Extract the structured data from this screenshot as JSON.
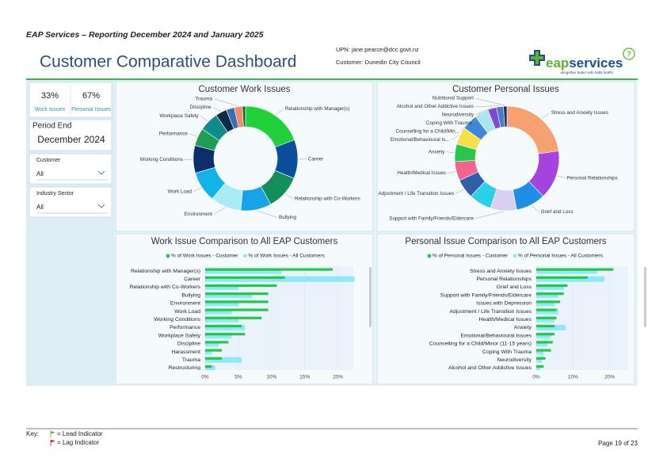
{
  "document": {
    "header": "EAP Services – Reporting December 2024 and January 2025",
    "footer": {
      "key": "Key:",
      "lead": "= Lead Indicator",
      "lag": "= Lag Indicator",
      "page": "Page 19 of 23"
    }
  },
  "dashboard": {
    "title": "Customer Comparative Dashboard",
    "upn": "UPN: jane.pearce@dcc.govt.nz",
    "customer": "Customer: Dunedin City Council",
    "logo": {
      "prefix": "eap",
      "suffix": "services",
      "tagline": "altogether better with habit health"
    },
    "help": "?",
    "kpis": [
      {
        "value": "33%",
        "label": "Work Issues"
      },
      {
        "value": "67%",
        "label": "Personal Issues"
      }
    ],
    "period": {
      "label": "Period End",
      "value": "December 2024"
    },
    "filters": [
      {
        "label": "Customer",
        "value": "All"
      },
      {
        "label": "Industry Sector",
        "value": "All"
      }
    ]
  },
  "charts": [
    {
      "type": "donut",
      "title": "Customer Work Issues",
      "categories": [
        "Relationship with Manager(s)",
        "Career",
        "Relationship with Co-Workers",
        "Bullying",
        "Environment",
        "Work Load",
        "Working Conditions",
        "Performance",
        "Workplace Safety",
        "Discipline",
        "Harassment",
        "Trauma",
        "Restructuring"
      ],
      "labels": [
        "Relationship with Manager(s)",
        "Career",
        "Relationship with Co-Workers",
        "Bullying",
        "Environment",
        "Work Load",
        "Working Conditions",
        "Performance",
        "Workplace Safety",
        "Discipline",
        null,
        "Trauma",
        null
      ],
      "values": [
        19.2,
        12,
        10.8,
        9.5,
        9.5,
        9.5,
        8.5,
        5.5,
        6,
        3.5,
        2.5,
        2.5,
        1
      ],
      "colors": [
        "#22d03c",
        "#0b4f9c",
        "#148f5a",
        "#1aa2e6",
        "#a8ecf5",
        "#12b3e8",
        "#0d2e6b",
        "#1e9e4f",
        "#108a8a",
        "#0c2a4a",
        "#3b6fb0",
        "#f48a6a",
        "#0e6e3c"
      ]
    },
    {
      "type": "donut",
      "title": "Customer Personal Issues",
      "categories": [
        "Stress and Anxiety Issues",
        "Personal Relationships",
        "Grief and Loss",
        "Support with Family/Friends/Eldercare",
        "Issues with Depression",
        "Adjustment / Life Transition Issues",
        "Health/Medical Issues",
        "Anxiety",
        "Emotional/Behavioural Issues",
        "Counselling for a Child/Minor (11-15 years)",
        "Coping With Trauma",
        "Neurodiversity",
        "Alcohol and Other Addictive Issues",
        "Nutritional Support"
      ],
      "labels": [
        "Stress and Anxiety Issues",
        "Personal Relationships",
        "Grief and Loss",
        "Support with Family/Friends/Eldercare",
        null,
        "Adjustment / Life Transition Issues",
        "Health/Medical Issues",
        "Anxiety",
        "Emotional/Behavioural Is...",
        "Counselling for a Child/Min...",
        "Coping With Trauma",
        "Neurodiversity",
        "Alcohol and Other Addictive Issues",
        "Nutritional Support"
      ],
      "values": [
        21,
        14,
        8.5,
        7.5,
        6.5,
        5.5,
        5.5,
        5,
        5,
        4.5,
        4,
        2.5,
        2,
        1
      ],
      "colors": [
        "#f7a072",
        "#a443dd",
        "#1d8fe6",
        "#d9cff2",
        "#2ad0e8",
        "#2f5fa8",
        "#f0648e",
        "#26c74a",
        "#f5e04a",
        "#3f86d6",
        "#a9e6f2",
        "#7a4bd0",
        "#4d7ac4",
        "#1a2f5a"
      ]
    },
    {
      "type": "hbar",
      "title": "Work Issue Comparison to All EAP Customers",
      "categories": [
        "Relationship with Manager(s)",
        "Career",
        "Relationship with Co-Workers",
        "Bullying",
        "Environment",
        "Work Load",
        "Working Conditions",
        "Performance",
        "Workplace Safety",
        "Discipline",
        "Harassment",
        "Trauma",
        "Restructuring"
      ],
      "series": [
        {
          "name": "% of Work Issues - Customer",
          "color": "#22c84a",
          "values": [
            19.2,
            12,
            10.8,
            9.5,
            9.5,
            9.5,
            8.5,
            5.5,
            6,
            3.5,
            2.5,
            2.5,
            1
          ]
        },
        {
          "name": "% of Work Issues - All Customers",
          "color": "#8ee8f5",
          "values": [
            11.5,
            22.5,
            5,
            7,
            5,
            4,
            5,
            6,
            4,
            2,
            1,
            5.5,
            1.5
          ]
        }
      ],
      "xlim": [
        0,
        22.3
      ],
      "xticks": [
        {
          "value": 0,
          "label": "0%"
        },
        {
          "value": 5,
          "label": "5%"
        },
        {
          "value": 10,
          "label": "10%"
        },
        {
          "value": 15,
          "label": "15%"
        },
        {
          "value": 20,
          "label": "20%"
        }
      ]
    },
    {
      "type": "hbar",
      "title": "Personal Issue Comparison to All EAP Customers",
      "categories": [
        "Stress and Anxiety Issues",
        "Personal Relationships",
        "Grief and Loss",
        "Support with Family/Friends/Eldercare",
        "Issues with Depression",
        "Adjustment / Life Transition Issues",
        "Health/Medical Issues",
        "Anxiety",
        "Emotional/Behavioural Issues",
        "Counselling for a Child/Minor (11-15 years)",
        "Coping With Trauma",
        "Neurodiversity",
        "Alcohol and Other Addictive Issues"
      ],
      "series": [
        {
          "name": "% of Personal Issues - Customer",
          "color": "#22c84a",
          "values": [
            21,
            14,
            8.5,
            7.5,
            6.5,
            5.5,
            5.5,
            5,
            5,
            4.5,
            4,
            2.5,
            2
          ]
        },
        {
          "name": "% of Personal Issues - All Customers",
          "color": "#8ee8f5",
          "values": [
            16.5,
            18.5,
            7.5,
            6,
            5,
            6,
            5,
            8,
            4,
            3,
            2,
            1.5,
            1
          ]
        }
      ],
      "xlim": [
        0,
        25
      ],
      "xticks": [
        {
          "value": 0,
          "label": "0%"
        },
        {
          "value": 10,
          "label": "10%"
        },
        {
          "value": 20,
          "label": "20%"
        }
      ]
    }
  ]
}
